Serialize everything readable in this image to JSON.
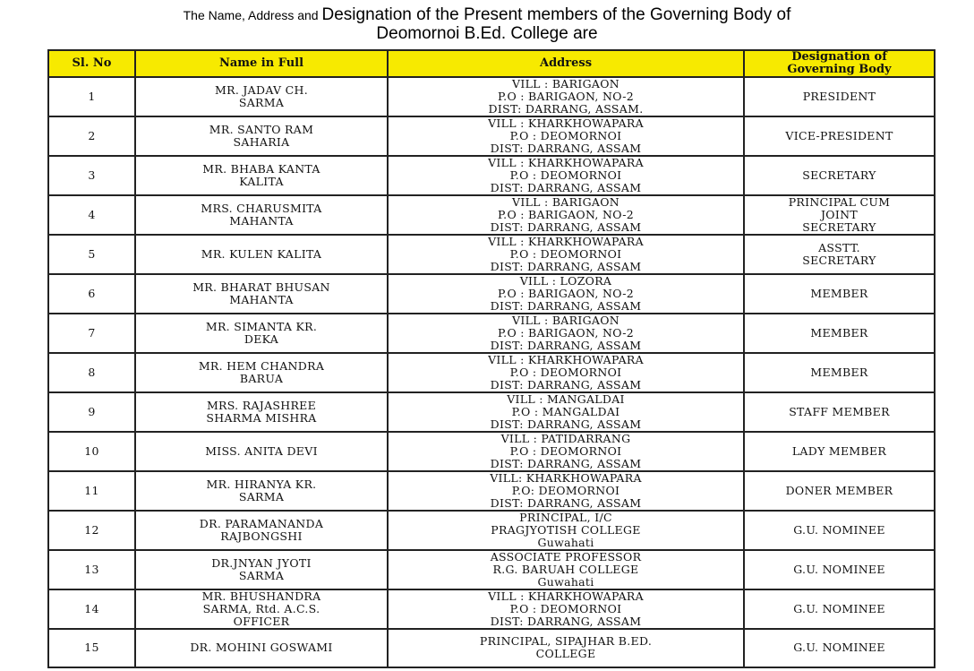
{
  "heading": {
    "part1": "The Name, Address and ",
    "part2": "Designation of the Present members of the Governing Body of",
    "line2": "Deomornoi B.Ed. College are"
  },
  "table": {
    "headers": [
      "Sl. No",
      "Name in Full",
      "Address",
      "Designation of\nGoverning Body"
    ],
    "rows": [
      {
        "sl": "1",
        "name": "MR. JADAV CH.\nSARMA",
        "address": "VILL : BARIGAON\nP.O  : BARIGAON, NO-2\nDIST: DARRANG, ASSAM.",
        "designation": "PRESIDENT"
      },
      {
        "sl": "2",
        "name": "MR. SANTO RAM\nSAHARIA",
        "address": "VILL : KHARKHOWAPARA\nP.O  : DEOMORNOI\nDIST: DARRANG, ASSAM",
        "designation": "VICE-PRESIDENT"
      },
      {
        "sl": "3",
        "name": "MR. BHABA KANTA\nKALITA",
        "address": "VILL : KHARKHOWAPARA\nP.O  : DEOMORNOI\nDIST: DARRANG, ASSAM",
        "designation": "SECRETARY"
      },
      {
        "sl": "4",
        "name": "MRS. CHARUSMITA\nMAHANTA",
        "address": "VILL : BARIGAON\nP.O  : BARIGAON, NO-2\nDIST: DARRANG, ASSAM",
        "designation": "PRINCIPAL CUM\nJOINT\nSECRETARY"
      },
      {
        "sl": "5",
        "name": "MR. KULEN KALITA",
        "address": "VILL : KHARKHOWAPARA\nP.O  : DEOMORNOI\nDIST: DARRANG, ASSAM",
        "designation": "ASSTT.\nSECRETARY"
      },
      {
        "sl": "6",
        "name": "MR. BHARAT BHUSAN\nMAHANTA",
        "address": "VILL : LOZORA\nP.O  : BARIGAON, NO-2\nDIST: DARRANG, ASSAM",
        "designation": "MEMBER"
      },
      {
        "sl": "7",
        "name": "MR. SIMANTA KR.\nDEKA",
        "address": "VILL : BARIGAON\nP.O  : BARIGAON, NO-2\nDIST: DARRANG, ASSAM",
        "designation": "MEMBER"
      },
      {
        "sl": "8",
        "name": "MR. HEM CHANDRA\nBARUA",
        "address": "VILL : KHARKHOWAPARA\nP.O  : DEOMORNOI\nDIST: DARRANG, ASSAM",
        "designation": "MEMBER"
      },
      {
        "sl": "9",
        "name": "MRS. RAJASHREE\nSHARMA MISHRA",
        "address": "VILL : MANGALDAI\nP.O  : MANGALDAI\nDIST: DARRANG, ASSAM",
        "designation": "STAFF MEMBER"
      },
      {
        "sl": "10",
        "name": "MISS. ANITA DEVI",
        "address": "VILL : PATIDARRANG\nP.O  : DEOMORNOI\nDIST: DARRANG, ASSAM",
        "designation": "LADY MEMBER"
      },
      {
        "sl": "11",
        "name": "MR. HIRANYA KR.\nSARMA",
        "address": "VILL: KHARKHOWAPARA\nP.O: DEOMORNOI\nDIST: DARRANG, ASSAM",
        "designation": "DONER MEMBER"
      },
      {
        "sl": "12",
        "name": "DR. PARAMANANDA\nRAJBONGSHI",
        "address": "PRINCIPAL, I/C\nPRAGJYOTISH COLLEGE\nGuwahati",
        "designation": "G.U. NOMINEE"
      },
      {
        "sl": "13",
        "name": "DR.JNYAN JYOTI\nSARMA",
        "address": "ASSOCIATE PROFESSOR\nR.G. BARUAH COLLEGE\nGuwahati",
        "designation": "G.U. NOMINEE"
      },
      {
        "sl": "14",
        "name": "MR. BHUSHANDRA\nSARMA, Rtd. A.C.S.\nOFFICER",
        "address": "VILL : KHARKHOWAPARA\nP.O  : DEOMORNOI\nDIST: DARRANG, ASSAM",
        "designation": "G.U. NOMINEE"
      },
      {
        "sl": "15",
        "name": "DR. MOHINI GOSWAMI",
        "address": "PRINCIPAL, SIPAJHAR B.ED.\nCOLLEGE",
        "designation": "G.U. NOMINEE"
      }
    ]
  },
  "colors": {
    "header_bg": "#f7ea00",
    "border": "#222222"
  }
}
